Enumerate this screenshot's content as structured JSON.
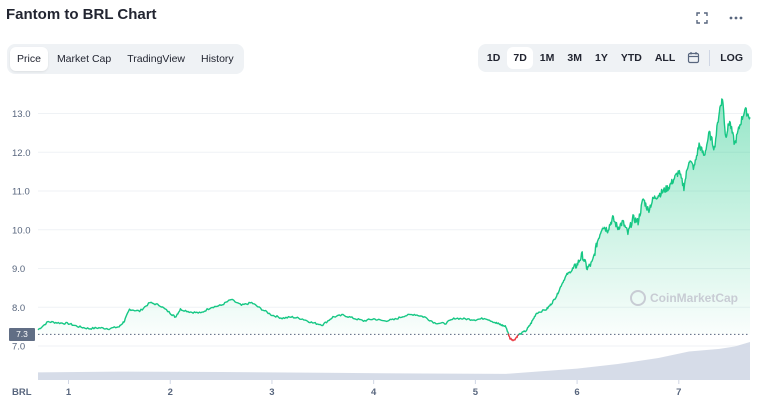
{
  "header": {
    "title": "Fantom to BRL Chart"
  },
  "tabs": [
    {
      "label": "Price",
      "active": true
    },
    {
      "label": "Market Cap",
      "active": false
    },
    {
      "label": "TradingView",
      "active": false
    },
    {
      "label": "History",
      "active": false
    }
  ],
  "ranges": [
    {
      "label": "1D",
      "active": false
    },
    {
      "label": "7D",
      "active": true
    },
    {
      "label": "1M",
      "active": false
    },
    {
      "label": "3M",
      "active": false
    },
    {
      "label": "1Y",
      "active": false
    },
    {
      "label": "YTD",
      "active": false
    },
    {
      "label": "ALL",
      "active": false
    }
  ],
  "log_label": "LOG",
  "current_price_badge": "7.3",
  "watermark": "CoinMarketCap",
  "colors": {
    "up": "#16c784",
    "down": "#ea3943",
    "volume": "#cfd6e4",
    "badge": "#616e85"
  },
  "chart_data": {
    "type": "line",
    "currency_label": "BRL",
    "y_ticks": [
      "13.0",
      "12.0",
      "11.0",
      "10.0",
      "9.0",
      "8.0",
      "7.0"
    ],
    "ylim": [
      6.95,
      13.4
    ],
    "x_ticks": [
      "1",
      "2",
      "3",
      "4",
      "5",
      "6",
      "7"
    ],
    "xlim": [
      0.7,
      7.7
    ],
    "reference_price": 7.3,
    "price": [
      [
        0.7,
        7.42
      ],
      [
        0.8,
        7.63
      ],
      [
        0.9,
        7.6
      ],
      [
        1.0,
        7.58
      ],
      [
        1.1,
        7.5
      ],
      [
        1.2,
        7.45
      ],
      [
        1.3,
        7.47
      ],
      [
        1.4,
        7.45
      ],
      [
        1.5,
        7.5
      ],
      [
        1.55,
        7.65
      ],
      [
        1.6,
        7.95
      ],
      [
        1.7,
        7.9
      ],
      [
        1.8,
        8.12
      ],
      [
        1.9,
        8.05
      ],
      [
        2.0,
        7.85
      ],
      [
        2.05,
        7.75
      ],
      [
        2.1,
        7.95
      ],
      [
        2.2,
        7.88
      ],
      [
        2.3,
        7.85
      ],
      [
        2.4,
        8.0
      ],
      [
        2.5,
        8.05
      ],
      [
        2.6,
        8.2
      ],
      [
        2.7,
        8.05
      ],
      [
        2.8,
        8.12
      ],
      [
        2.9,
        7.95
      ],
      [
        3.0,
        7.8
      ],
      [
        3.1,
        7.72
      ],
      [
        3.2,
        7.75
      ],
      [
        3.3,
        7.7
      ],
      [
        3.4,
        7.6
      ],
      [
        3.5,
        7.55
      ],
      [
        3.6,
        7.75
      ],
      [
        3.7,
        7.8
      ],
      [
        3.8,
        7.72
      ],
      [
        3.9,
        7.65
      ],
      [
        4.0,
        7.7
      ],
      [
        4.1,
        7.65
      ],
      [
        4.2,
        7.68
      ],
      [
        4.3,
        7.78
      ],
      [
        4.4,
        7.82
      ],
      [
        4.5,
        7.75
      ],
      [
        4.6,
        7.6
      ],
      [
        4.7,
        7.58
      ],
      [
        4.8,
        7.72
      ],
      [
        4.9,
        7.7
      ],
      [
        5.0,
        7.68
      ],
      [
        5.1,
        7.72
      ],
      [
        5.2,
        7.6
      ],
      [
        5.25,
        7.55
      ],
      [
        5.3,
        7.5
      ],
      [
        5.34,
        7.2
      ],
      [
        5.38,
        7.15
      ],
      [
        5.42,
        7.28
      ],
      [
        5.5,
        7.4
      ],
      [
        5.55,
        7.6
      ],
      [
        5.6,
        7.85
      ],
      [
        5.7,
        7.95
      ],
      [
        5.75,
        8.1
      ],
      [
        5.8,
        8.3
      ],
      [
        5.85,
        8.6
      ],
      [
        5.9,
        8.85
      ],
      [
        5.95,
        8.95
      ],
      [
        6.0,
        9.1
      ],
      [
        6.05,
        9.35
      ],
      [
        6.1,
        9.0
      ],
      [
        6.15,
        9.15
      ],
      [
        6.2,
        9.7
      ],
      [
        6.25,
        10.1
      ],
      [
        6.3,
        10.0
      ],
      [
        6.35,
        10.3
      ],
      [
        6.4,
        10.05
      ],
      [
        6.45,
        10.2
      ],
      [
        6.5,
        9.9
      ],
      [
        6.55,
        10.3
      ],
      [
        6.6,
        10.2
      ],
      [
        6.65,
        10.8
      ],
      [
        6.7,
        10.5
      ],
      [
        6.75,
        10.8
      ],
      [
        6.8,
        10.9
      ],
      [
        6.85,
        11.0
      ],
      [
        6.9,
        11.1
      ],
      [
        6.95,
        11.3
      ],
      [
        7.0,
        11.5
      ],
      [
        7.05,
        11.1
      ],
      [
        7.1,
        11.8
      ],
      [
        7.15,
        11.6
      ],
      [
        7.2,
        12.2
      ],
      [
        7.25,
        11.9
      ],
      [
        7.3,
        12.5
      ],
      [
        7.35,
        12.1
      ],
      [
        7.4,
        13.1
      ],
      [
        7.43,
        13.4
      ],
      [
        7.46,
        12.4
      ],
      [
        7.5,
        12.8
      ],
      [
        7.55,
        12.2
      ],
      [
        7.6,
        12.7
      ],
      [
        7.65,
        13.1
      ],
      [
        7.7,
        12.9
      ]
    ],
    "volume": [
      [
        0.7,
        0.2
      ],
      [
        1.5,
        0.22
      ],
      [
        2.5,
        0.21
      ],
      [
        3.5,
        0.19
      ],
      [
        4.5,
        0.17
      ],
      [
        5.3,
        0.16
      ],
      [
        5.6,
        0.22
      ],
      [
        6.0,
        0.3
      ],
      [
        6.4,
        0.42
      ],
      [
        6.8,
        0.58
      ],
      [
        7.1,
        0.75
      ],
      [
        7.4,
        0.82
      ],
      [
        7.55,
        0.88
      ],
      [
        7.7,
        1.0
      ]
    ]
  }
}
